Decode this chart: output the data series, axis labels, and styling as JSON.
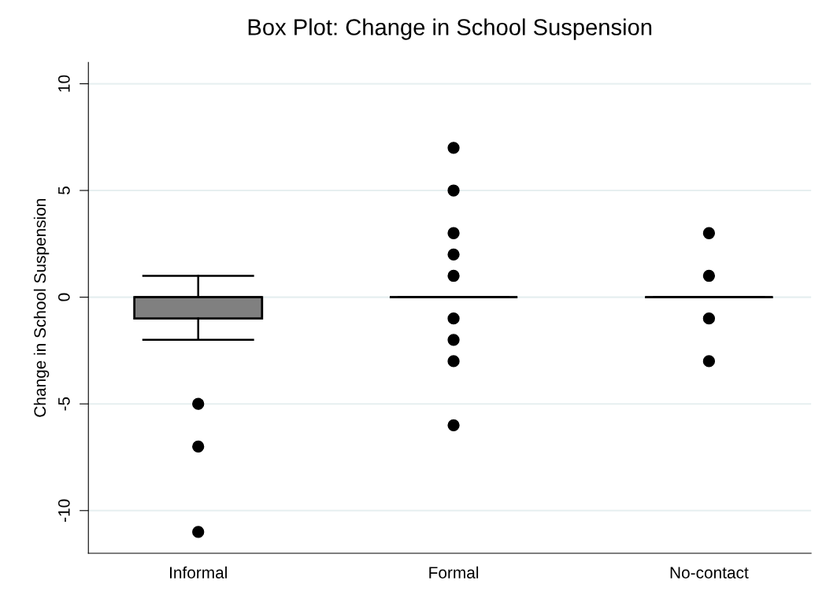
{
  "chart_data": {
    "type": "box",
    "title": "Box Plot: Change in School Suspension",
    "ylabel": "Change in School Suspension",
    "categories": [
      "Informal",
      "Formal",
      "No-contact"
    ],
    "boxes": [
      {
        "low": -2,
        "q1": -1,
        "median": 0,
        "q3": 0,
        "high": 1,
        "outliers": [
          -5,
          -7,
          -11
        ]
      },
      {
        "low": 0,
        "q1": 0,
        "median": 0,
        "q3": 0,
        "high": 0,
        "outliers": [
          7,
          5,
          3,
          2,
          1,
          -1,
          -2,
          -3,
          -6
        ]
      },
      {
        "low": 0,
        "q1": 0,
        "median": 0,
        "q3": 0,
        "high": 0,
        "outliers": [
          3,
          1,
          -1,
          -3
        ]
      }
    ],
    "colors": [
      "#808080",
      "#000000",
      "#000000"
    ],
    "ylim": [
      -12,
      11
    ],
    "yticks": [
      -10,
      -5,
      0,
      5,
      10
    ],
    "grid": "y"
  }
}
